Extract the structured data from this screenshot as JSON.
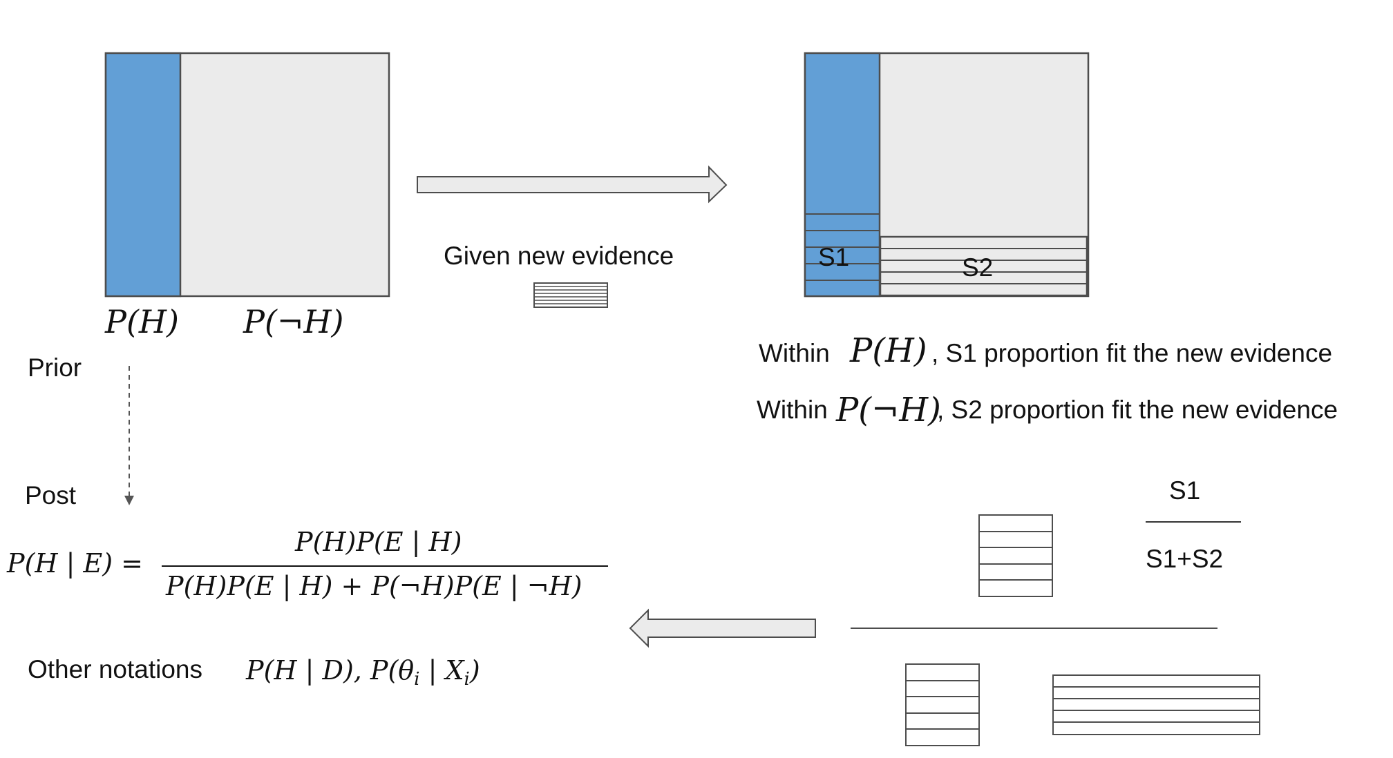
{
  "prior_box": {
    "label_h": "P(H)",
    "label_not_h": "P(¬H)"
  },
  "prior_label": "Prior",
  "post_label": "Post",
  "arrow_caption": "Given new evidence",
  "posterior_box": {
    "s1_label": "S1",
    "s2_label": "S2"
  },
  "statements": [
    {
      "prefix": "Within",
      "math": "P(H)",
      "suffix": ", S1 proportion fit the new evidence"
    },
    {
      "prefix": "Within",
      "math": "P(¬H)",
      "suffix": ", S2 proportion fit the new evidence"
    }
  ],
  "ratio": {
    "numerator": "S1",
    "denominator": "S1+S2"
  },
  "bayes_formula": {
    "lhs": "P(H | E) =",
    "numerator": "P(H)P(E | H)",
    "denominator": "P(H)P(E | H) + P(¬H)P(E | ¬H)"
  },
  "other_notations": {
    "label": "Other notations",
    "expr_1": "P(H | D),",
    "expr_2_pre": "P(θ",
    "expr_2_sub1": "i",
    "expr_2_mid": " | X",
    "expr_2_sub2": "i",
    "expr_2_post": ")"
  },
  "colors": {
    "hypothesis": "#629fd6",
    "complement": "#ebebeb",
    "stroke": "#4d4d4d",
    "arrow_fill": "#ebebeb"
  }
}
